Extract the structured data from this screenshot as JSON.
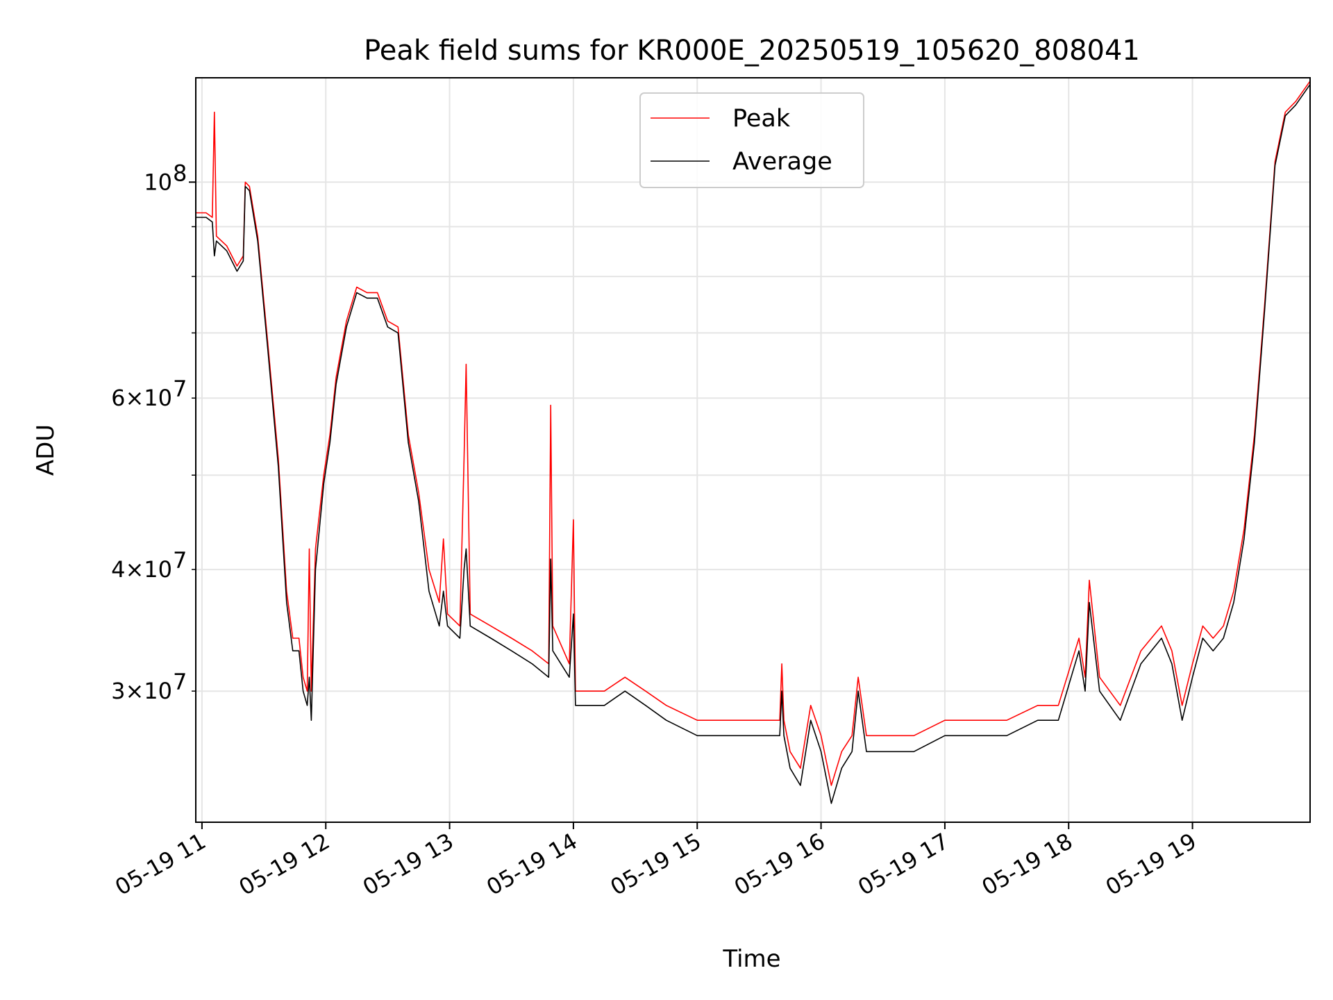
{
  "chart_data": {
    "type": "line",
    "title": "Peak field sums for KR000E_20250519_105620_808041",
    "xlabel": "Time",
    "ylabel": "ADU",
    "y_scale": "log",
    "ylim": [
      22000000,
      128000000
    ],
    "xlim": [
      "05-19 10:57",
      "05-19 19:57"
    ],
    "grid": true,
    "legend": {
      "placement": "upper center",
      "entries": [
        "Peak",
        "Average"
      ]
    },
    "x_ticks": [
      "05-19 11",
      "05-19 12",
      "05-19 13",
      "05-19 14",
      "05-19 15",
      "05-19 16",
      "05-19 17",
      "05-19 18",
      "05-19 19"
    ],
    "x_tick_times": [
      "05-19 11:00",
      "05-19 12:00",
      "05-19 13:00",
      "05-19 14:00",
      "05-19 15:00",
      "05-19 16:00",
      "05-19 17:00",
      "05-19 18:00",
      "05-19 19:00"
    ],
    "y_ticks_major": [
      {
        "value": 100000000,
        "label": "10",
        "exp": "8"
      }
    ],
    "y_ticks_minor": [
      {
        "value": 30000000,
        "label": "3×10",
        "exp": "7"
      },
      {
        "value": 40000000,
        "label": "4×10",
        "exp": "7"
      },
      {
        "value": 60000000,
        "label": "6×10",
        "exp": "7"
      }
    ],
    "y_minor_unlabeled": [
      50000000,
      70000000,
      80000000,
      90000000
    ],
    "series": [
      {
        "name": "Peak",
        "color": "#ff0000",
        "x": [
          "05-19 10:57",
          "05-19 11:02",
          "05-19 11:05",
          "05-19 11:06",
          "05-19 11:07",
          "05-19 11:12",
          "05-19 11:17",
          "05-19 11:20",
          "05-19 11:21",
          "05-19 11:23",
          "05-19 11:27",
          "05-19 11:32",
          "05-19 11:37",
          "05-19 11:41",
          "05-19 11:44",
          "05-19 11:47",
          "05-19 11:49",
          "05-19 11:51",
          "05-19 11:52",
          "05-19 11:53",
          "05-19 11:55",
          "05-19 11:59",
          "05-19 12:02",
          "05-19 12:05",
          "05-19 12:10",
          "05-19 12:15",
          "05-19 12:20",
          "05-19 12:25",
          "05-19 12:30",
          "05-19 12:35",
          "05-19 12:40",
          "05-19 12:45",
          "05-19 12:50",
          "05-19 12:55",
          "05-19 12:57",
          "05-19 12:59",
          "05-19 13:05",
          "05-19 13:07",
          "05-19 13:08",
          "05-19 13:10",
          "05-19 13:20",
          "05-19 13:30",
          "05-19 13:40",
          "05-19 13:48",
          "05-19 13:49",
          "05-19 13:50",
          "05-19 13:58",
          "05-19 14:00",
          "05-19 14:01",
          "05-19 14:05",
          "05-19 14:15",
          "05-19 14:25",
          "05-19 14:35",
          "05-19 14:45",
          "05-19 15:00",
          "05-19 15:15",
          "05-19 15:30",
          "05-19 15:40",
          "05-19 15:41",
          "05-19 15:42",
          "05-19 15:45",
          "05-19 15:50",
          "05-19 15:55",
          "05-19 16:00",
          "05-19 16:05",
          "05-19 16:10",
          "05-19 16:15",
          "05-19 16:18",
          "05-19 16:22",
          "05-19 16:30",
          "05-19 16:45",
          "05-19 17:00",
          "05-19 17:15",
          "05-19 17:30",
          "05-19 17:45",
          "05-19 17:55",
          "05-19 18:05",
          "05-19 18:08",
          "05-19 18:10",
          "05-19 18:15",
          "05-19 18:25",
          "05-19 18:35",
          "05-19 18:45",
          "05-19 18:50",
          "05-19 18:55",
          "05-19 19:00",
          "05-19 19:05",
          "05-19 19:10",
          "05-19 19:15",
          "05-19 19:20",
          "05-19 19:25",
          "05-19 19:30",
          "05-19 19:35",
          "05-19 19:40",
          "05-19 19:45",
          "05-19 19:50",
          "05-19 19:57"
        ],
        "values": [
          93000000,
          93000000,
          92000000,
          118000000,
          88000000,
          86000000,
          82000000,
          84000000,
          100000000,
          99000000,
          88000000,
          68000000,
          52000000,
          38000000,
          34000000,
          34000000,
          31000000,
          30000000,
          42000000,
          30000000,
          42000000,
          50000000,
          55000000,
          63000000,
          72000000,
          78000000,
          77000000,
          77000000,
          72000000,
          71000000,
          55000000,
          48000000,
          40000000,
          37000000,
          43000000,
          36000000,
          35000000,
          52000000,
          65000000,
          36000000,
          35000000,
          34000000,
          33000000,
          32000000,
          59000000,
          35000000,
          32000000,
          45000000,
          30000000,
          30000000,
          30000000,
          31000000,
          30000000,
          29000000,
          28000000,
          28000000,
          28000000,
          28000000,
          32000000,
          28000000,
          26000000,
          25000000,
          29000000,
          27000000,
          24000000,
          26000000,
          27000000,
          31000000,
          27000000,
          27000000,
          27000000,
          28000000,
          28000000,
          28000000,
          29000000,
          29000000,
          34000000,
          31000000,
          39000000,
          31000000,
          29000000,
          33000000,
          35000000,
          33000000,
          29000000,
          32000000,
          35000000,
          34000000,
          35000000,
          38000000,
          44000000,
          55000000,
          75000000,
          105000000,
          118000000,
          121000000,
          127000000
        ]
      },
      {
        "name": "Average",
        "color": "#000000",
        "x": [
          "05-19 10:57",
          "05-19 11:02",
          "05-19 11:05",
          "05-19 11:06",
          "05-19 11:07",
          "05-19 11:12",
          "05-19 11:17",
          "05-19 11:20",
          "05-19 11:21",
          "05-19 11:23",
          "05-19 11:27",
          "05-19 11:32",
          "05-19 11:37",
          "05-19 11:41",
          "05-19 11:44",
          "05-19 11:47",
          "05-19 11:49",
          "05-19 11:51",
          "05-19 11:52",
          "05-19 11:53",
          "05-19 11:55",
          "05-19 11:59",
          "05-19 12:02",
          "05-19 12:05",
          "05-19 12:10",
          "05-19 12:15",
          "05-19 12:20",
          "05-19 12:25",
          "05-19 12:30",
          "05-19 12:35",
          "05-19 12:40",
          "05-19 12:45",
          "05-19 12:50",
          "05-19 12:55",
          "05-19 12:57",
          "05-19 12:59",
          "05-19 13:05",
          "05-19 13:07",
          "05-19 13:08",
          "05-19 13:10",
          "05-19 13:20",
          "05-19 13:30",
          "05-19 13:40",
          "05-19 13:48",
          "05-19 13:49",
          "05-19 13:50",
          "05-19 13:58",
          "05-19 14:00",
          "05-19 14:01",
          "05-19 14:05",
          "05-19 14:15",
          "05-19 14:25",
          "05-19 14:35",
          "05-19 14:45",
          "05-19 15:00",
          "05-19 15:15",
          "05-19 15:30",
          "05-19 15:40",
          "05-19 15:41",
          "05-19 15:42",
          "05-19 15:45",
          "05-19 15:50",
          "05-19 15:55",
          "05-19 16:00",
          "05-19 16:05",
          "05-19 16:10",
          "05-19 16:15",
          "05-19 16:18",
          "05-19 16:22",
          "05-19 16:30",
          "05-19 16:45",
          "05-19 17:00",
          "05-19 17:15",
          "05-19 17:30",
          "05-19 17:45",
          "05-19 17:55",
          "05-19 18:05",
          "05-19 18:08",
          "05-19 18:10",
          "05-19 18:15",
          "05-19 18:25",
          "05-19 18:35",
          "05-19 18:45",
          "05-19 18:50",
          "05-19 18:55",
          "05-19 19:00",
          "05-19 19:05",
          "05-19 19:10",
          "05-19 19:15",
          "05-19 19:20",
          "05-19 19:25",
          "05-19 19:30",
          "05-19 19:35",
          "05-19 19:40",
          "05-19 19:45",
          "05-19 19:50",
          "05-19 19:57"
        ],
        "values": [
          92000000,
          92000000,
          91000000,
          84000000,
          87000000,
          85000000,
          81000000,
          83000000,
          99000000,
          98000000,
          87000000,
          67000000,
          51000000,
          37000000,
          33000000,
          33000000,
          30000000,
          29000000,
          31000000,
          28000000,
          40000000,
          49000000,
          54000000,
          62000000,
          71000000,
          77000000,
          76000000,
          76000000,
          71000000,
          70000000,
          54000000,
          47000000,
          38000000,
          35000000,
          38000000,
          35000000,
          34000000,
          40000000,
          42000000,
          35000000,
          34000000,
          33000000,
          32000000,
          31000000,
          41000000,
          33000000,
          31000000,
          36000000,
          29000000,
          29000000,
          29000000,
          30000000,
          29000000,
          28000000,
          27000000,
          27000000,
          27000000,
          27000000,
          30000000,
          27000000,
          25000000,
          24000000,
          28000000,
          26000000,
          23000000,
          25000000,
          26000000,
          30000000,
          26000000,
          26000000,
          26000000,
          27000000,
          27000000,
          27000000,
          28000000,
          28000000,
          33000000,
          30000000,
          37000000,
          30000000,
          28000000,
          32000000,
          34000000,
          32000000,
          28000000,
          31000000,
          34000000,
          33000000,
          34000000,
          37000000,
          43000000,
          54000000,
          74000000,
          104000000,
          117000000,
          120000000,
          126000000
        ]
      }
    ]
  }
}
